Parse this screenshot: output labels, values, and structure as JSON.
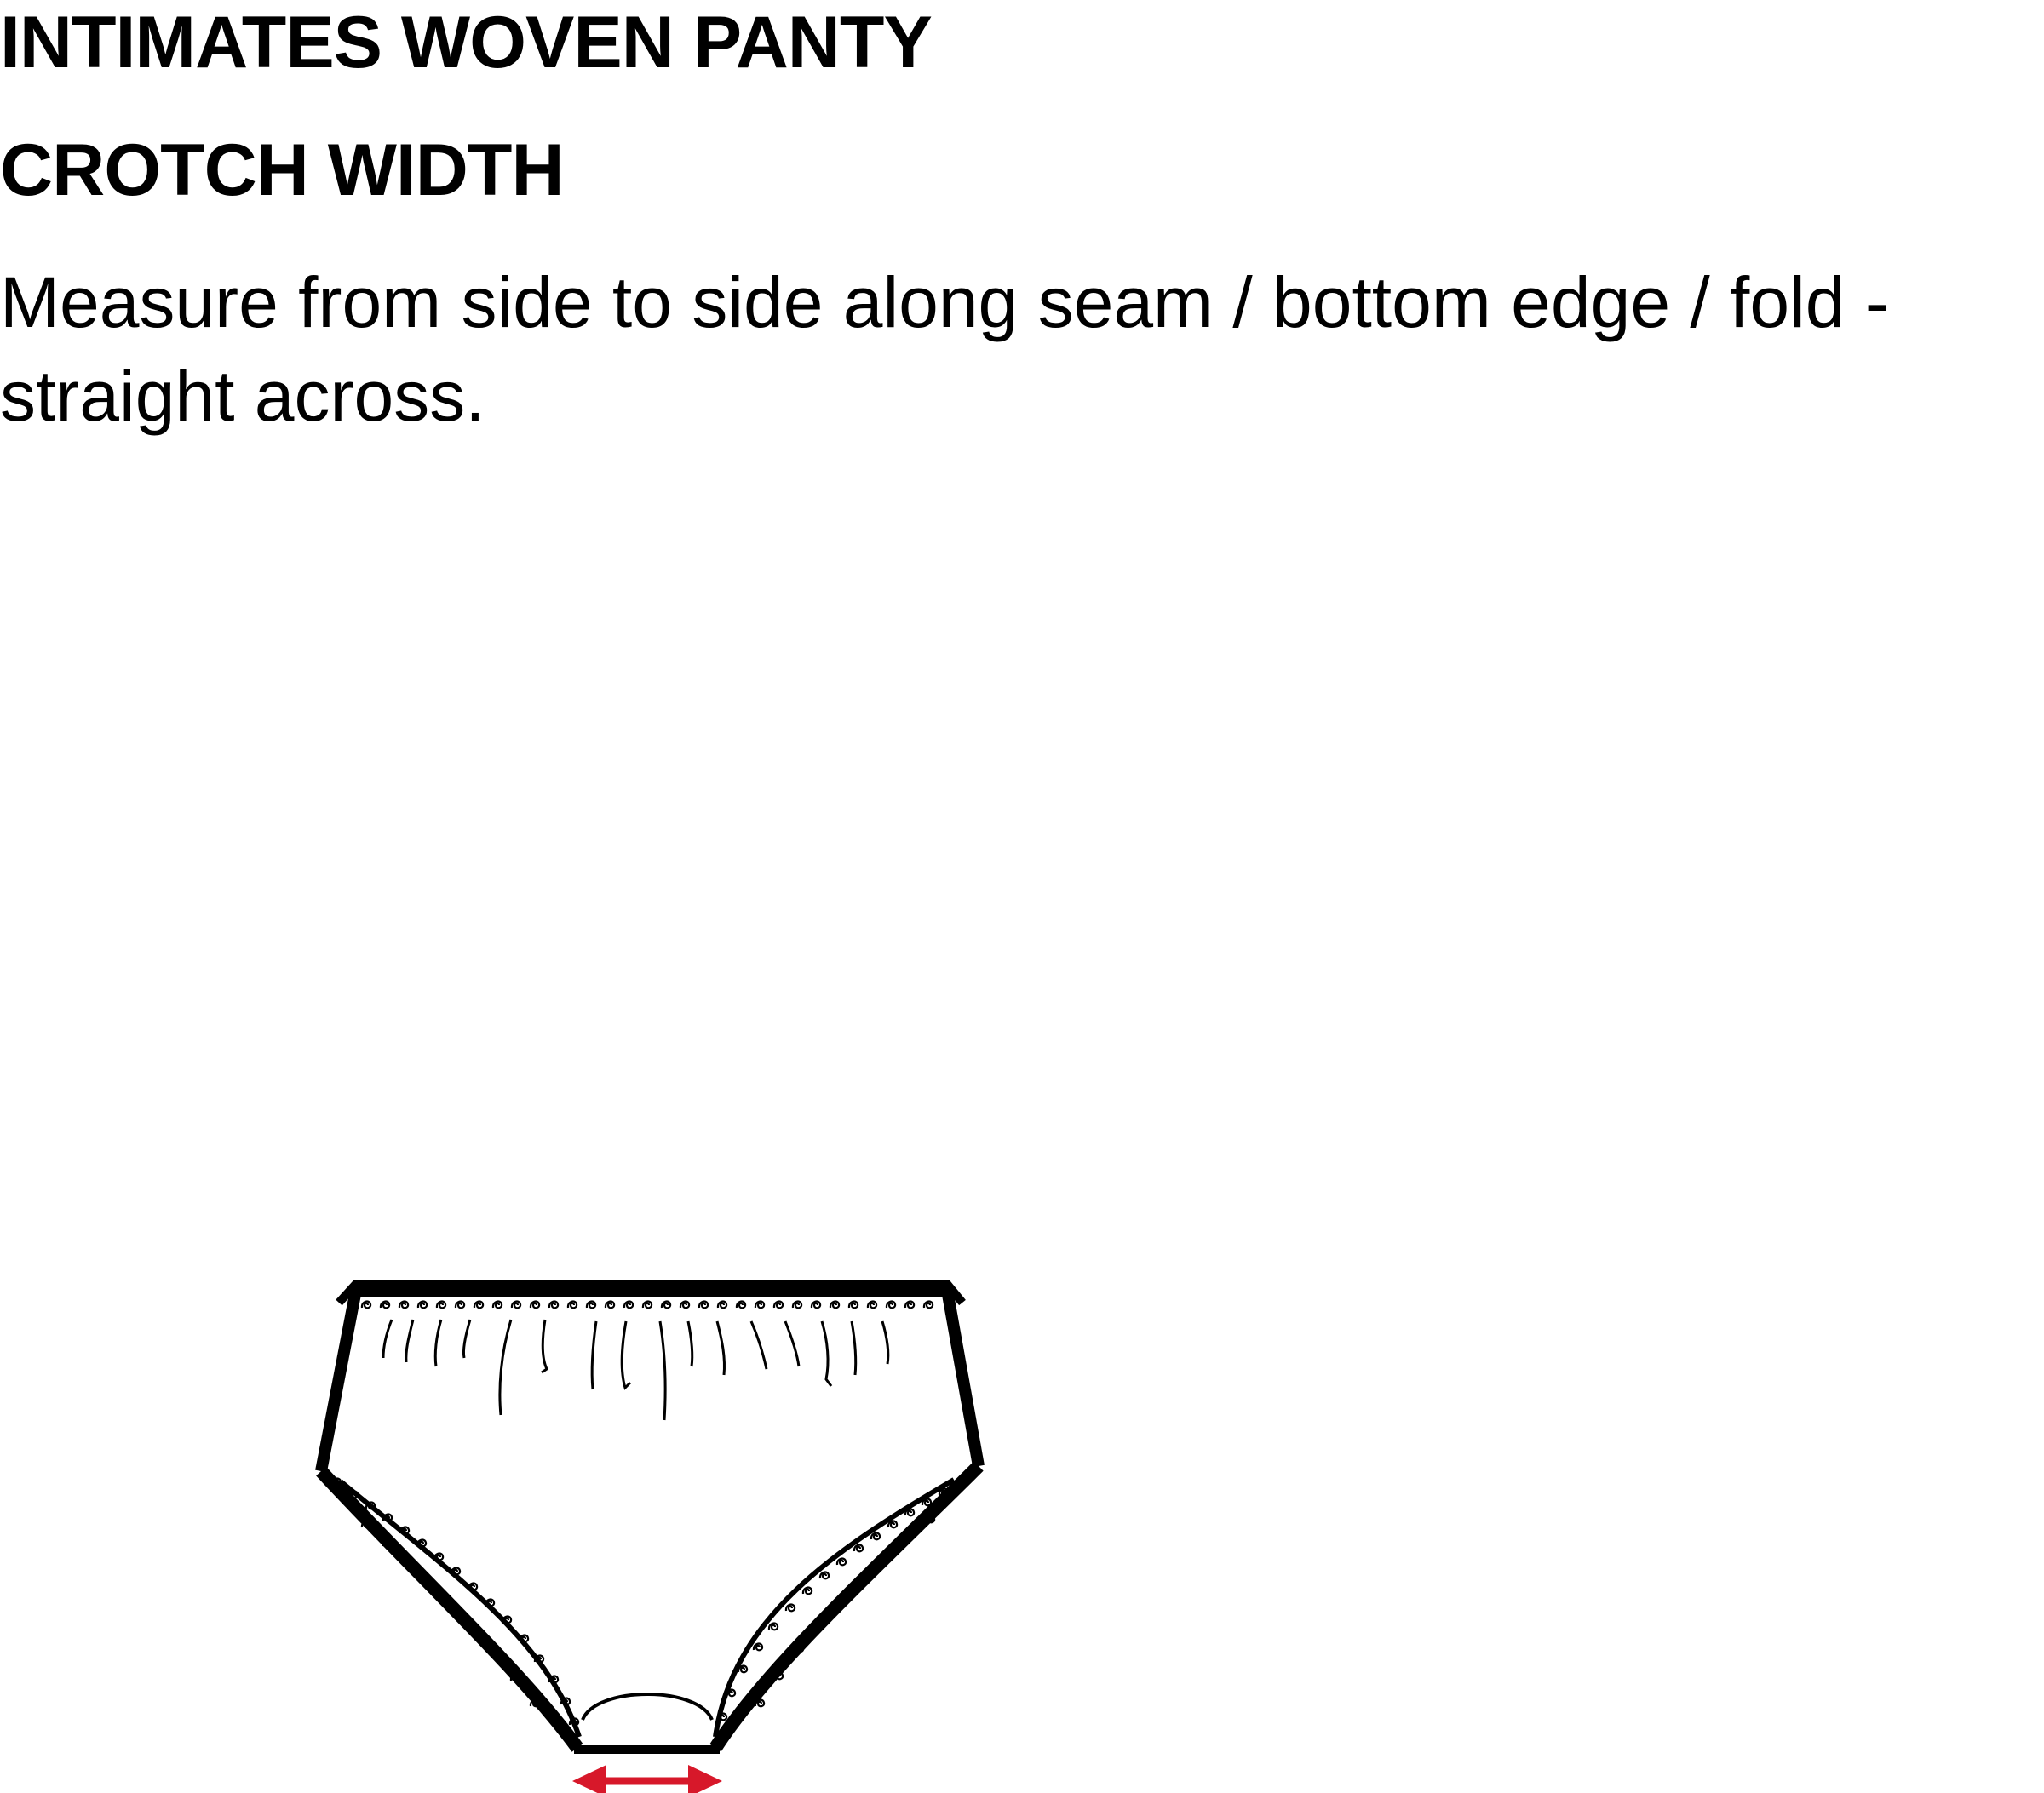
{
  "header": {
    "title": "INTIMATES WOVEN PANTY",
    "subtitle": "CROTCH WIDTH"
  },
  "instructions": {
    "text": "Measure from side to side along seam / bottom edge / fold - straight across."
  },
  "diagram": {
    "garment_icon": "panty-line-drawing",
    "measurement_icon": "double-headed-arrow",
    "arrow_color": "#d7182a",
    "line_color": "#000000"
  }
}
